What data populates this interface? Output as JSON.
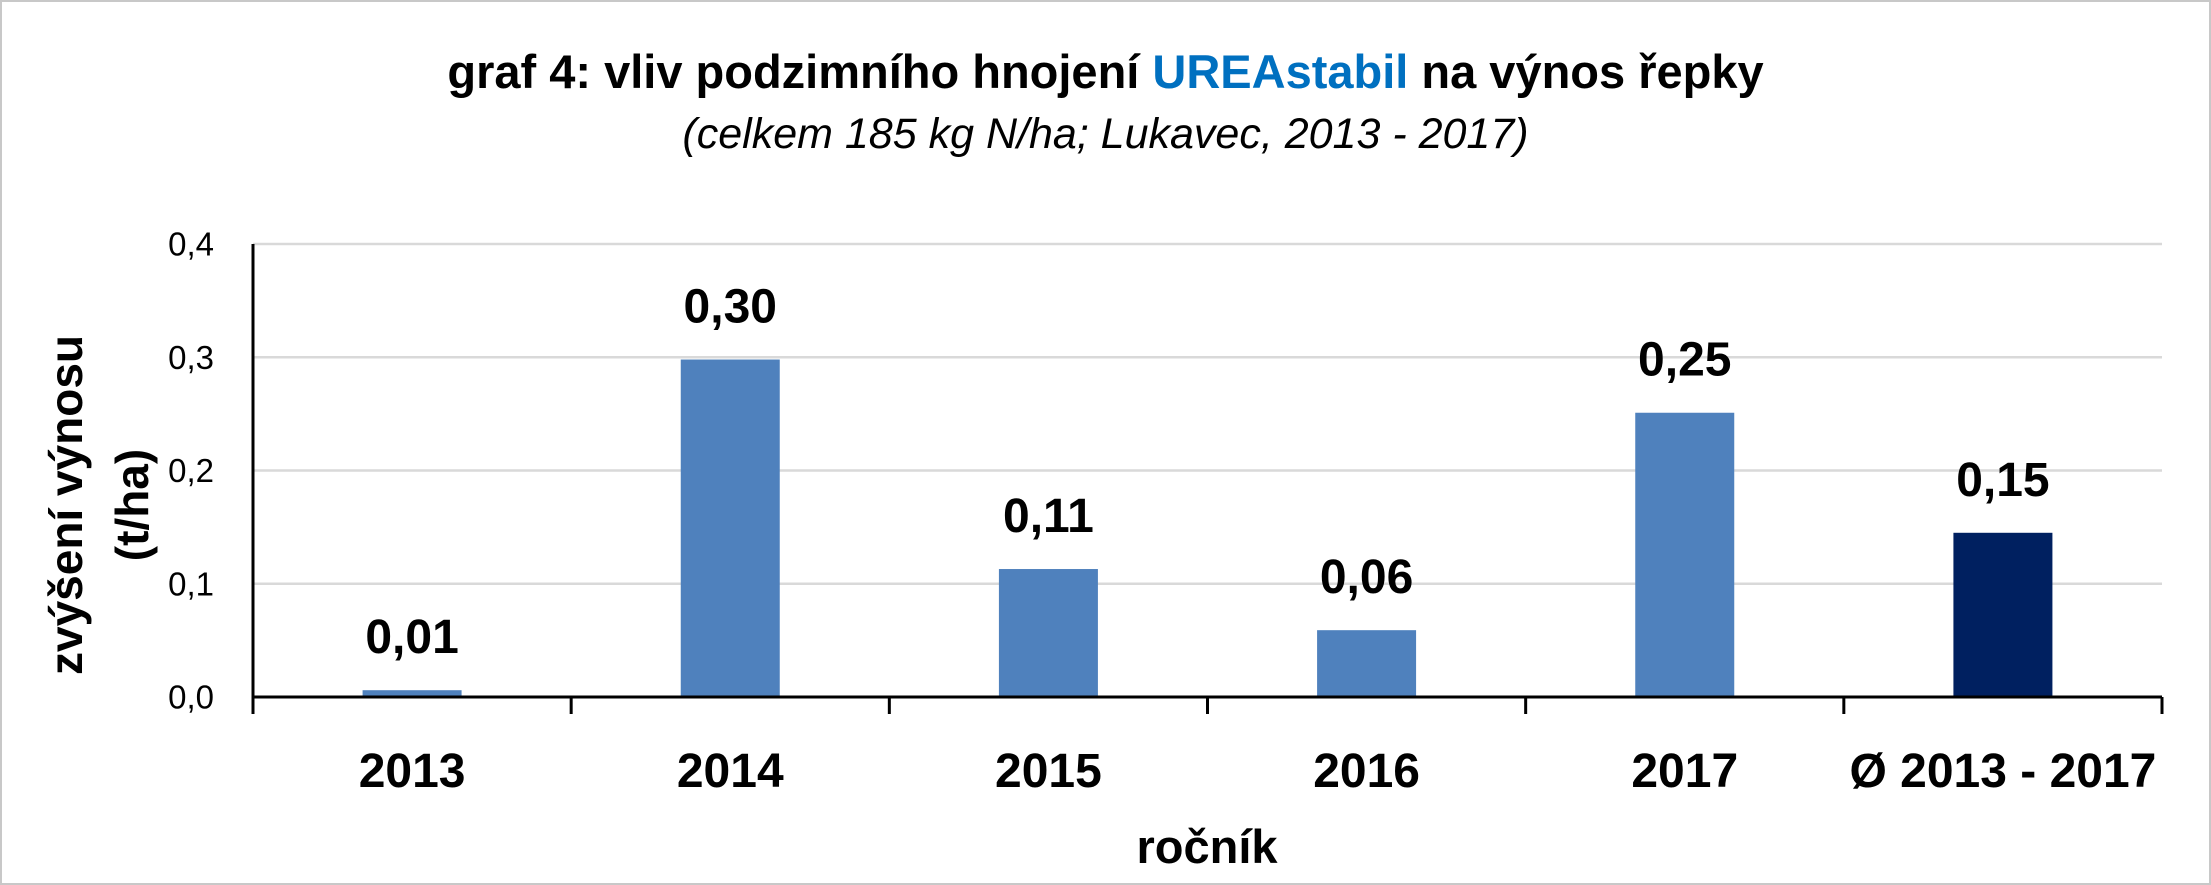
{
  "chart_data": {
    "type": "bar",
    "title": {
      "prefix": "graf 4: vliv podzimního hnojení ",
      "highlight": "UREAstabil",
      "suffix": " na výnos řepky"
    },
    "subtitle": "(celkem 185 kg N/ha; Lukavec, 2013 - 2017)",
    "xlabel": "ročník",
    "ylabel": [
      "zvýšení výnosu",
      "(t/ha)"
    ],
    "categories": [
      "2013",
      "2014",
      "2015",
      "2016",
      "2017",
      "Ø 2013 - 2017"
    ],
    "values": [
      0.006,
      0.298,
      0.113,
      0.059,
      0.251,
      0.145
    ],
    "data_labels": [
      "0,01",
      "0,30",
      "0,11",
      "0,06",
      "0,25",
      "0,15"
    ],
    "ylim": [
      0,
      0.4
    ],
    "y_ticks": [
      0,
      0.1,
      0.2,
      0.3,
      0.4
    ],
    "y_tick_labels": [
      "0,0",
      "0,1",
      "0,2",
      "0,3",
      "0,4"
    ],
    "grid": true,
    "bar_colors": [
      "#4F81BD",
      "#4F81BD",
      "#4F81BD",
      "#4F81BD",
      "#4F81BD",
      "#002060"
    ],
    "colors": {
      "title_highlight": "#0070C0",
      "grid": "#D9D9D9",
      "axis": "#000000",
      "text": "#000000"
    }
  }
}
